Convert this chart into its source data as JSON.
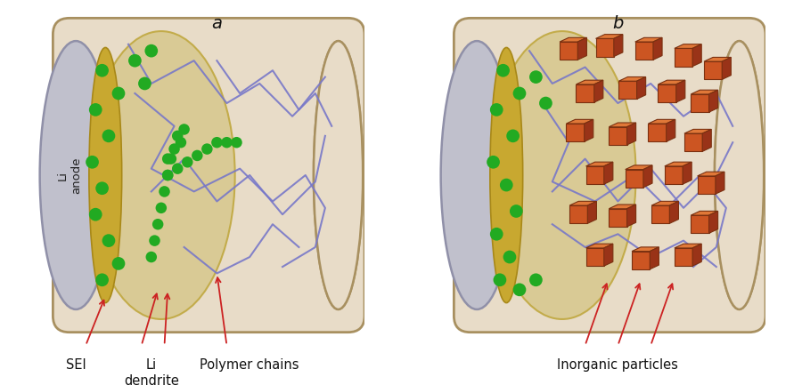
{
  "bg_color": "#ffffff",
  "cylinder_fill": "#e8dcc8",
  "cylinder_stroke": "#a89060",
  "anode_fill": "#c0c0cc",
  "anode_stroke": "#9090a8",
  "sei_fill": "#c8a830",
  "sei_stroke": "#a88818",
  "inner_fill": "#d8c890",
  "inner_stroke": "#c0a840",
  "green_dot_color": "#22aa22",
  "chain_color": "#7878c8",
  "particle_face": "#cc5522",
  "particle_top": "#e07838",
  "particle_side": "#993318",
  "annotation_color": "#cc2222",
  "label_a": "a",
  "label_b": "b",
  "label_li_anode": "Li\nanode",
  "label_sei": "SEI",
  "label_dendrite": "Li\ndendrite",
  "label_chains": "Polymer chains",
  "label_particles": "Inorganic particles"
}
